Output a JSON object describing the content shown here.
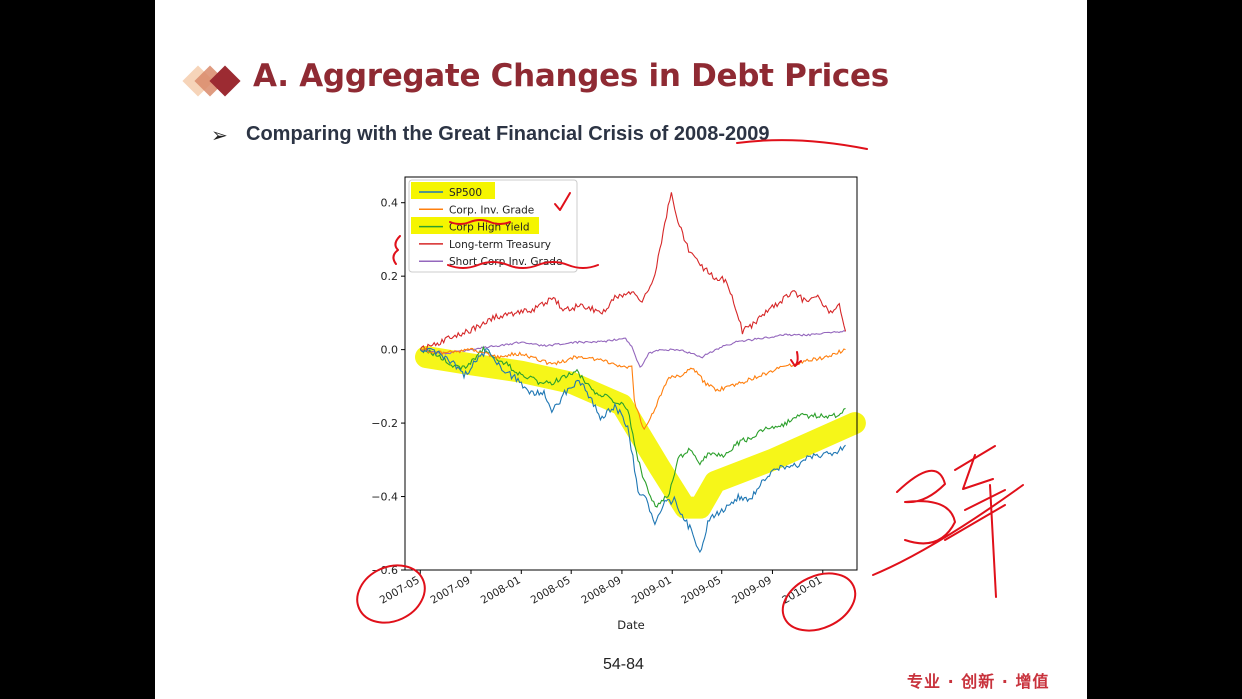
{
  "slide": {
    "title": "A. Aggregate Changes in Debt Prices",
    "subtitle": "Comparing with the Great Financial Crisis of 2008-2009",
    "page_number": "54-84",
    "brand": "专业 · 创新 · 增值",
    "title_color": "#8f2a33",
    "brand_color": "#c8323c"
  },
  "chart_data": {
    "type": "line",
    "xlabel": "Date",
    "ylabel": "",
    "xlim": [
      "2007-03-25",
      "2010-03-25"
    ],
    "ylim": [
      -0.6,
      0.47
    ],
    "x_ticks": [
      "2007-05",
      "2007-09",
      "2008-01",
      "2008-05",
      "2008-09",
      "2009-01",
      "2009-05",
      "2009-09",
      "2010-01"
    ],
    "y_ticks": [
      -0.6,
      -0.4,
      -0.2,
      0.0,
      0.2,
      0.4
    ],
    "y_tick_labels": [
      "−0.6",
      "−0.4",
      "−0.2",
      "0.0",
      "0.2",
      "0.4"
    ],
    "legend_position": "top-left",
    "grid": false,
    "series": [
      {
        "name": "SP500",
        "color": "#1f77b4",
        "points": [
          [
            "2007-05-01",
            0.0
          ],
          [
            "2007-06-15",
            -0.01
          ],
          [
            "2007-07-20",
            -0.04
          ],
          [
            "2007-08-15",
            -0.07
          ],
          [
            "2007-09-15",
            -0.03
          ],
          [
            "2007-10-10",
            0.0
          ],
          [
            "2007-11-15",
            -0.05
          ],
          [
            "2007-12-20",
            -0.08
          ],
          [
            "2008-01-25",
            -0.12
          ],
          [
            "2008-02-25",
            -0.12
          ],
          [
            "2008-03-15",
            -0.17
          ],
          [
            "2008-04-15",
            -0.12
          ],
          [
            "2008-05-20",
            -0.08
          ],
          [
            "2008-06-20",
            -0.14
          ],
          [
            "2008-07-15",
            -0.19
          ],
          [
            "2008-08-15",
            -0.15
          ],
          [
            "2008-09-15",
            -0.21
          ],
          [
            "2008-10-10",
            -0.38
          ],
          [
            "2008-10-30",
            -0.41
          ],
          [
            "2008-11-20",
            -0.47
          ],
          [
            "2008-12-10",
            -0.42
          ],
          [
            "2009-01-06",
            -0.41
          ],
          [
            "2009-01-25",
            -0.45
          ],
          [
            "2009-02-20",
            -0.5
          ],
          [
            "2009-03-09",
            -0.55
          ],
          [
            "2009-04-01",
            -0.46
          ],
          [
            "2009-05-01",
            -0.44
          ],
          [
            "2009-06-10",
            -0.4
          ],
          [
            "2009-07-10",
            -0.41
          ],
          [
            "2009-08-10",
            -0.35
          ],
          [
            "2009-09-20",
            -0.32
          ],
          [
            "2009-10-20",
            -0.32
          ],
          [
            "2009-11-20",
            -0.3
          ],
          [
            "2010-01-15",
            -0.28
          ],
          [
            "2010-02-05",
            -0.28
          ],
          [
            "2010-02-25",
            -0.26
          ]
        ]
      },
      {
        "name": "Corp. Inv. Grade",
        "color": "#ff7f0e",
        "points": [
          [
            "2007-05-01",
            0.0
          ],
          [
            "2007-07-01",
            -0.01
          ],
          [
            "2007-09-01",
            0.0
          ],
          [
            "2007-11-01",
            -0.02
          ],
          [
            "2008-01-01",
            -0.01
          ],
          [
            "2008-03-15",
            -0.04
          ],
          [
            "2008-05-15",
            -0.02
          ],
          [
            "2008-07-15",
            -0.03
          ],
          [
            "2008-09-10",
            -0.05
          ],
          [
            "2008-09-25",
            -0.04
          ],
          [
            "2008-10-01",
            -0.14
          ],
          [
            "2008-10-25",
            -0.22
          ],
          [
            "2008-11-20",
            -0.16
          ],
          [
            "2008-12-20",
            -0.08
          ],
          [
            "2009-01-20",
            -0.07
          ],
          [
            "2009-02-15",
            -0.05
          ],
          [
            "2009-03-01",
            -0.06
          ],
          [
            "2009-03-20",
            -0.09
          ],
          [
            "2009-04-20",
            -0.11
          ],
          [
            "2009-05-20",
            -0.1
          ],
          [
            "2009-06-20",
            -0.09
          ],
          [
            "2009-08-01",
            -0.07
          ],
          [
            "2009-09-20",
            -0.05
          ],
          [
            "2009-11-20",
            -0.03
          ],
          [
            "2010-01-10",
            -0.02
          ],
          [
            "2010-02-25",
            0.0
          ]
        ]
      },
      {
        "name": "Corp High Yield",
        "color": "#2ca02c",
        "points": [
          [
            "2007-05-01",
            0.0
          ],
          [
            "2007-06-01",
            -0.01
          ],
          [
            "2007-07-15",
            -0.04
          ],
          [
            "2007-08-15",
            -0.05
          ],
          [
            "2007-10-01",
            0.0
          ],
          [
            "2007-11-15",
            -0.03
          ],
          [
            "2007-12-20",
            -0.06
          ],
          [
            "2008-02-15",
            -0.09
          ],
          [
            "2008-03-15",
            -0.09
          ],
          [
            "2008-05-15",
            -0.06
          ],
          [
            "2008-06-20",
            -0.11
          ],
          [
            "2008-08-15",
            -0.14
          ],
          [
            "2008-09-15",
            -0.16
          ],
          [
            "2008-10-10",
            -0.3
          ],
          [
            "2008-11-01",
            -0.38
          ],
          [
            "2008-11-25",
            -0.43
          ],
          [
            "2008-12-25",
            -0.39
          ],
          [
            "2009-01-15",
            -0.3
          ],
          [
            "2009-02-10",
            -0.27
          ],
          [
            "2009-03-09",
            -0.31
          ],
          [
            "2009-04-01",
            -0.28
          ],
          [
            "2009-05-01",
            -0.29
          ],
          [
            "2009-06-15",
            -0.25
          ],
          [
            "2009-07-15",
            -0.24
          ],
          [
            "2009-08-20",
            -0.21
          ],
          [
            "2009-09-20",
            -0.21
          ],
          [
            "2009-11-01",
            -0.18
          ],
          [
            "2010-01-01",
            -0.18
          ],
          [
            "2010-02-01",
            -0.18
          ],
          [
            "2010-02-25",
            -0.16
          ]
        ]
      },
      {
        "name": "Long-term Treasury",
        "color": "#d62728",
        "points": [
          [
            "2007-05-01",
            0.0
          ],
          [
            "2007-06-15",
            0.02
          ],
          [
            "2007-08-01",
            0.04
          ],
          [
            "2007-09-15",
            0.06
          ],
          [
            "2007-11-01",
            0.09
          ],
          [
            "2007-12-20",
            0.1
          ],
          [
            "2008-02-01",
            0.11
          ],
          [
            "2008-03-15",
            0.14
          ],
          [
            "2008-04-15",
            0.11
          ],
          [
            "2008-06-01",
            0.12
          ],
          [
            "2008-07-15",
            0.1
          ],
          [
            "2008-08-15",
            0.14
          ],
          [
            "2008-09-25",
            0.16
          ],
          [
            "2008-10-20",
            0.13
          ],
          [
            "2008-11-20",
            0.2
          ],
          [
            "2008-12-10",
            0.32
          ],
          [
            "2008-12-30",
            0.43
          ],
          [
            "2009-01-15",
            0.35
          ],
          [
            "2009-02-10",
            0.27
          ],
          [
            "2009-03-10",
            0.23
          ],
          [
            "2009-04-10",
            0.2
          ],
          [
            "2009-05-10",
            0.19
          ],
          [
            "2009-05-30",
            0.13
          ],
          [
            "2009-06-20",
            0.05
          ],
          [
            "2009-07-20",
            0.07
          ],
          [
            "2009-08-20",
            0.11
          ],
          [
            "2009-09-20",
            0.13
          ],
          [
            "2009-10-20",
            0.16
          ],
          [
            "2009-11-20",
            0.13
          ],
          [
            "2009-12-20",
            0.14
          ],
          [
            "2010-01-20",
            0.1
          ],
          [
            "2010-02-10",
            0.12
          ],
          [
            "2010-02-25",
            0.05
          ]
        ]
      },
      {
        "name": "Short Corp Inv. Grade",
        "color": "#9467bd",
        "points": [
          [
            "2007-05-01",
            0.0
          ],
          [
            "2007-07-01",
            -0.01
          ],
          [
            "2007-09-01",
            0.0
          ],
          [
            "2007-11-01",
            0.01
          ],
          [
            "2008-01-01",
            0.02
          ],
          [
            "2008-03-01",
            0.01
          ],
          [
            "2008-05-01",
            0.02
          ],
          [
            "2008-07-01",
            0.02
          ],
          [
            "2008-09-10",
            0.03
          ],
          [
            "2008-09-25",
            0.01
          ],
          [
            "2008-10-15",
            -0.05
          ],
          [
            "2008-11-05",
            -0.01
          ],
          [
            "2008-12-01",
            0.0
          ],
          [
            "2009-01-15",
            0.0
          ],
          [
            "2009-02-15",
            -0.01
          ],
          [
            "2009-03-15",
            -0.02
          ],
          [
            "2009-04-15",
            0.0
          ],
          [
            "2009-06-01",
            0.02
          ],
          [
            "2009-08-01",
            0.03
          ],
          [
            "2009-10-01",
            0.04
          ],
          [
            "2009-12-01",
            0.04
          ],
          [
            "2010-02-25",
            0.05
          ]
        ]
      }
    ]
  }
}
